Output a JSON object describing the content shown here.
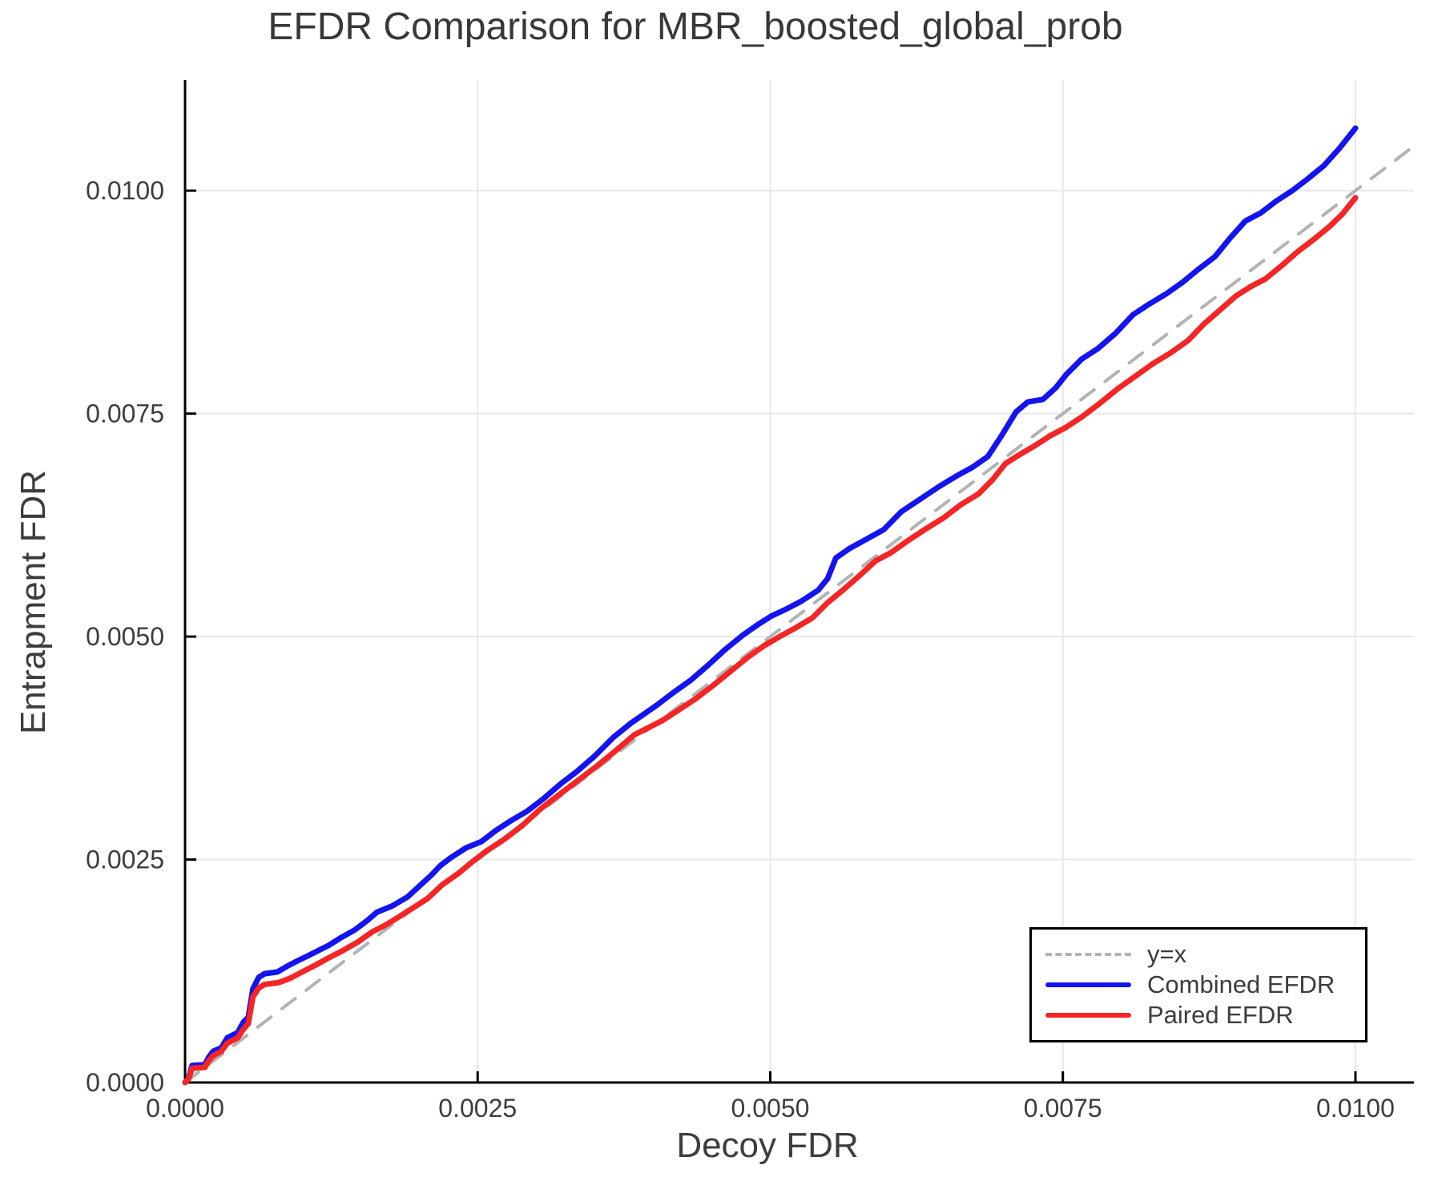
{
  "chart_data": {
    "type": "line",
    "title": "EFDR Comparison for MBR_boosted_global_prob",
    "xlabel": "Decoy FDR",
    "ylabel": "Entrapment FDR",
    "xlim": [
      0,
      0.0105
    ],
    "ylim": [
      0,
      0.01124
    ],
    "grid": true,
    "legend_position": "lower right",
    "colors": {
      "reference": "#b3b3b3",
      "combined": "#1414f0",
      "paired": "#f52525",
      "gridline": "#e8e8e8",
      "spine": "#000000",
      "text": "#3d3d3d"
    },
    "x_ticks": {
      "values": [
        0,
        0.0025,
        0.005,
        0.0075,
        0.01
      ],
      "labels": [
        "0.0000",
        "0.0025",
        "0.0050",
        "0.0075",
        "0.0100"
      ]
    },
    "y_ticks": {
      "values": [
        0,
        0.0025,
        0.005,
        0.0075,
        0.01
      ],
      "labels": [
        "0.0000",
        "0.0025",
        "0.0050",
        "0.0075",
        "0.0100"
      ]
    },
    "series": [
      {
        "name": "y=x",
        "style": "dashed",
        "color": "#b3b3b3",
        "points": [
          [
            0,
            0
          ],
          [
            0.0105,
            0.0105
          ]
        ]
      },
      {
        "name": "Combined EFDR",
        "style": "solid",
        "color": "#1414f0",
        "points": [
          [
            0,
            0
          ],
          [
            3e-05,
            5e-05
          ],
          [
            6e-05,
            0.00019
          ],
          [
            0.00017,
            0.0002
          ],
          [
            0.0002,
            0.00028
          ],
          [
            0.00024,
            0.00035
          ],
          [
            0.00031,
            0.00039
          ],
          [
            0.00036,
            0.0005
          ],
          [
            0.00045,
            0.00056
          ],
          [
            0.0005,
            0.00068
          ],
          [
            0.00054,
            0.00073
          ],
          [
            0.00058,
            0.00105
          ],
          [
            0.00063,
            0.00118
          ],
          [
            0.00068,
            0.00122
          ],
          [
            0.00079,
            0.00124
          ],
          [
            0.00088,
            0.00131
          ],
          [
            0.00097,
            0.00137
          ],
          [
            0.00105,
            0.00142
          ],
          [
            0.00114,
            0.00148
          ],
          [
            0.00123,
            0.00154
          ],
          [
            0.00134,
            0.00163
          ],
          [
            0.00145,
            0.00171
          ],
          [
            0.00156,
            0.00182
          ],
          [
            0.00164,
            0.00191
          ],
          [
            0.00177,
            0.00198
          ],
          [
            0.0019,
            0.00208
          ],
          [
            0.002,
            0.0022
          ],
          [
            0.0021,
            0.00232
          ],
          [
            0.00218,
            0.00243
          ],
          [
            0.00227,
            0.00252
          ],
          [
            0.0024,
            0.00263
          ],
          [
            0.00253,
            0.0027
          ],
          [
            0.00266,
            0.00283
          ],
          [
            0.00279,
            0.00294
          ],
          [
            0.00292,
            0.00304
          ],
          [
            0.00306,
            0.00318
          ],
          [
            0.00321,
            0.00335
          ],
          [
            0.00335,
            0.00349
          ],
          [
            0.0035,
            0.00366
          ],
          [
            0.00366,
            0.00387
          ],
          [
            0.00381,
            0.00403
          ],
          [
            0.00392,
            0.00413
          ],
          [
            0.00404,
            0.00424
          ],
          [
            0.00418,
            0.00438
          ],
          [
            0.00432,
            0.00451
          ],
          [
            0.00447,
            0.00468
          ],
          [
            0.00461,
            0.00485
          ],
          [
            0.00476,
            0.00501
          ],
          [
            0.0049,
            0.00514
          ],
          [
            0.00501,
            0.00523
          ],
          [
            0.00514,
            0.00531
          ],
          [
            0.00527,
            0.0054
          ],
          [
            0.00541,
            0.00552
          ],
          [
            0.00549,
            0.00565
          ],
          [
            0.00556,
            0.00588
          ],
          [
            0.00568,
            0.00599
          ],
          [
            0.00582,
            0.00609
          ],
          [
            0.00597,
            0.0062
          ],
          [
            0.00612,
            0.0064
          ],
          [
            0.00628,
            0.00654
          ],
          [
            0.00644,
            0.00668
          ],
          [
            0.00659,
            0.0068
          ],
          [
            0.00673,
            0.0069
          ],
          [
            0.00686,
            0.00702
          ],
          [
            0.00698,
            0.00726
          ],
          [
            0.0071,
            0.00752
          ],
          [
            0.0072,
            0.00763
          ],
          [
            0.00733,
            0.00766
          ],
          [
            0.00744,
            0.00779
          ],
          [
            0.00753,
            0.00794
          ],
          [
            0.00766,
            0.00811
          ],
          [
            0.0078,
            0.00823
          ],
          [
            0.00795,
            0.0084
          ],
          [
            0.0081,
            0.00861
          ],
          [
            0.00824,
            0.00873
          ],
          [
            0.00838,
            0.00884
          ],
          [
            0.00852,
            0.00897
          ],
          [
            0.00866,
            0.00912
          ],
          [
            0.0088,
            0.00926
          ],
          [
            0.00893,
            0.00947
          ],
          [
            0.00906,
            0.00966
          ],
          [
            0.00919,
            0.00975
          ],
          [
            0.00932,
            0.00988
          ],
          [
            0.00946,
            0.01
          ],
          [
            0.0096,
            0.01014
          ],
          [
            0.00973,
            0.01028
          ],
          [
            0.00986,
            0.01047
          ],
          [
            0.01,
            0.0107
          ]
        ]
      },
      {
        "name": "Paired EFDR",
        "style": "solid",
        "color": "#f52525",
        "points": [
          [
            0,
            0
          ],
          [
            3e-05,
            4e-05
          ],
          [
            6e-05,
            0.00016
          ],
          [
            0.00017,
            0.00017
          ],
          [
            0.0002,
            0.00024
          ],
          [
            0.00024,
            0.0003
          ],
          [
            0.00031,
            0.00035
          ],
          [
            0.00036,
            0.00044
          ],
          [
            0.00045,
            0.0005
          ],
          [
            0.0005,
            0.0006
          ],
          [
            0.00054,
            0.00066
          ],
          [
            0.00058,
            0.00096
          ],
          [
            0.00063,
            0.00106
          ],
          [
            0.00068,
            0.0011
          ],
          [
            0.0008,
            0.00112
          ],
          [
            0.0009,
            0.00117
          ],
          [
            0.001,
            0.00124
          ],
          [
            0.00112,
            0.00132
          ],
          [
            0.00123,
            0.0014
          ],
          [
            0.00135,
            0.00148
          ],
          [
            0.00147,
            0.00157
          ],
          [
            0.0016,
            0.00169
          ],
          [
            0.00172,
            0.00177
          ],
          [
            0.00183,
            0.00186
          ],
          [
            0.00195,
            0.00196
          ],
          [
            0.00207,
            0.00206
          ],
          [
            0.0022,
            0.00222
          ],
          [
            0.00233,
            0.00234
          ],
          [
            0.00245,
            0.00247
          ],
          [
            0.00258,
            0.0026
          ],
          [
            0.00272,
            0.00272
          ],
          [
            0.00288,
            0.00288
          ],
          [
            0.00304,
            0.00307
          ],
          [
            0.0032,
            0.00323
          ],
          [
            0.00336,
            0.00339
          ],
          [
            0.00352,
            0.00355
          ],
          [
            0.00368,
            0.00372
          ],
          [
            0.00384,
            0.0039
          ],
          [
            0.00396,
            0.00398
          ],
          [
            0.00408,
            0.00406
          ],
          [
            0.00422,
            0.00418
          ],
          [
            0.00436,
            0.0043
          ],
          [
            0.00451,
            0.00445
          ],
          [
            0.00466,
            0.00461
          ],
          [
            0.00481,
            0.00477
          ],
          [
            0.00495,
            0.0049
          ],
          [
            0.00508,
            0.005
          ],
          [
            0.00522,
            0.0051
          ],
          [
            0.00536,
            0.00521
          ],
          [
            0.00549,
            0.00538
          ],
          [
            0.00562,
            0.00552
          ],
          [
            0.00576,
            0.00568
          ],
          [
            0.0059,
            0.00585
          ],
          [
            0.00603,
            0.00594
          ],
          [
            0.00617,
            0.00607
          ],
          [
            0.00632,
            0.0062
          ],
          [
            0.00648,
            0.00633
          ],
          [
            0.00663,
            0.00648
          ],
          [
            0.00678,
            0.0066
          ],
          [
            0.0069,
            0.00676
          ],
          [
            0.00701,
            0.00694
          ],
          [
            0.00713,
            0.00704
          ],
          [
            0.00726,
            0.00714
          ],
          [
            0.00739,
            0.00725
          ],
          [
            0.00752,
            0.00734
          ],
          [
            0.00767,
            0.00747
          ],
          [
            0.00782,
            0.00762
          ],
          [
            0.00797,
            0.00778
          ],
          [
            0.00812,
            0.00792
          ],
          [
            0.00827,
            0.00806
          ],
          [
            0.00842,
            0.00818
          ],
          [
            0.00857,
            0.00832
          ],
          [
            0.00871,
            0.00851
          ],
          [
            0.00885,
            0.00867
          ],
          [
            0.00898,
            0.00882
          ],
          [
            0.0091,
            0.00892
          ],
          [
            0.00923,
            0.00901
          ],
          [
            0.00937,
            0.00916
          ],
          [
            0.00951,
            0.00932
          ],
          [
            0.00965,
            0.00946
          ],
          [
            0.00978,
            0.0096
          ],
          [
            0.00989,
            0.00974
          ],
          [
            0.01,
            0.00992
          ]
        ]
      }
    ]
  },
  "legend": {
    "items": [
      {
        "label": "y=x"
      },
      {
        "label": "Combined EFDR"
      },
      {
        "label": "Paired EFDR"
      }
    ]
  }
}
